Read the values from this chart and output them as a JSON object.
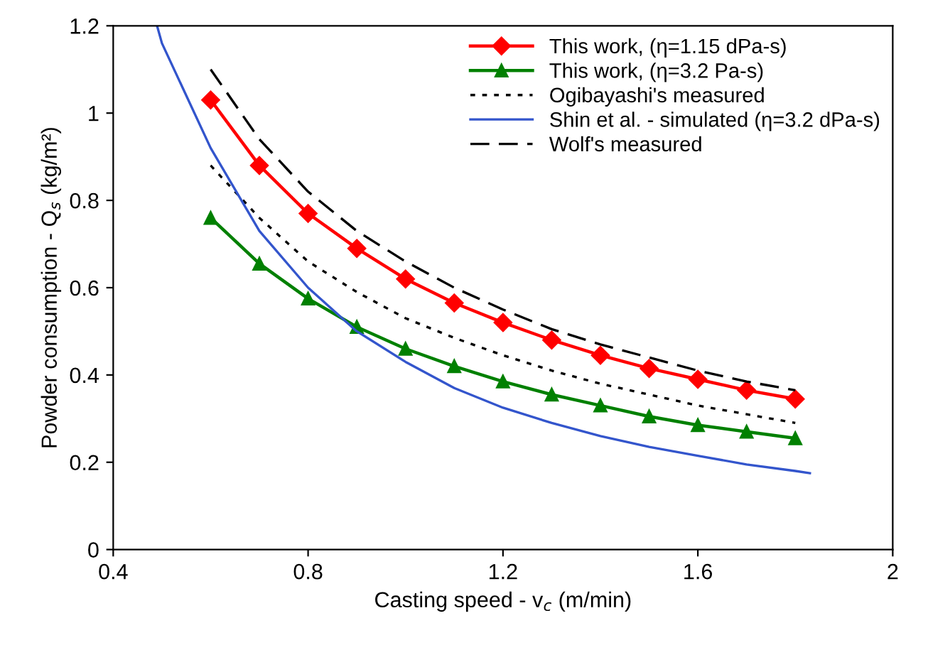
{
  "chart_data": {
    "type": "line",
    "xlabel": "Casting speed - v$_{c}$ (m/min)",
    "ylabel": "Powder consumption - Q$_{s}$ (kg/m²)",
    "xlim": [
      0.4,
      2
    ],
    "xticks": [
      0.4,
      0.8,
      1.2,
      1.6,
      2
    ],
    "ylim": [
      0,
      1.2
    ],
    "yticks": [
      0,
      0.2,
      0.4,
      0.6,
      0.8,
      1,
      1.2
    ],
    "grid": false,
    "legend": "top right",
    "series": [
      {
        "name": "This work, (η=1.15 dPa-s)",
        "color": "#ff0000",
        "marker": "diamond",
        "line_style": "solid",
        "x": [
          0.6,
          0.7,
          0.8,
          0.9,
          1.0,
          1.1,
          1.2,
          1.3,
          1.4,
          1.5,
          1.6,
          1.7,
          1.8
        ],
        "values": [
          1.03,
          0.88,
          0.77,
          0.69,
          0.62,
          0.565,
          0.52,
          0.48,
          0.445,
          0.415,
          0.39,
          0.365,
          0.345
        ]
      },
      {
        "name": "This work, (η=3.2 Pa-s)",
        "color": "#008000",
        "marker": "triangle",
        "line_style": "solid",
        "x": [
          0.6,
          0.7,
          0.8,
          0.9,
          1.0,
          1.1,
          1.2,
          1.3,
          1.4,
          1.5,
          1.6,
          1.7,
          1.8
        ],
        "values": [
          0.76,
          0.655,
          0.575,
          0.51,
          0.46,
          0.42,
          0.385,
          0.355,
          0.33,
          0.305,
          0.285,
          0.27,
          0.255
        ]
      },
      {
        "name": "Ogibayashi's measured",
        "color": "#000000",
        "marker": "none",
        "line_style": "dotted",
        "x": [
          0.6,
          0.7,
          0.8,
          0.9,
          1.0,
          1.1,
          1.2,
          1.3,
          1.4,
          1.5,
          1.6,
          1.7,
          1.8
        ],
        "values": [
          0.88,
          0.76,
          0.66,
          0.59,
          0.53,
          0.485,
          0.445,
          0.41,
          0.38,
          0.355,
          0.33,
          0.31,
          0.29
        ]
      },
      {
        "name": "Shin et al. - simulated (η=3.2 dPa-s)",
        "color": "#3355cc",
        "marker": "none",
        "line_style": "solid",
        "x": [
          0.49,
          0.5,
          0.6,
          0.7,
          0.8,
          0.9,
          1.0,
          1.1,
          1.2,
          1.3,
          1.4,
          1.5,
          1.6,
          1.7,
          1.8,
          1.83
        ],
        "values": [
          1.2,
          1.16,
          0.92,
          0.73,
          0.6,
          0.5,
          0.43,
          0.37,
          0.325,
          0.29,
          0.26,
          0.235,
          0.215,
          0.195,
          0.18,
          0.175
        ]
      },
      {
        "name": "Wolf's measured",
        "color": "#000000",
        "marker": "none",
        "line_style": "dashed",
        "x": [
          0.6,
          0.7,
          0.8,
          0.9,
          1.0,
          1.1,
          1.2,
          1.3,
          1.4,
          1.5,
          1.6,
          1.7,
          1.8
        ],
        "values": [
          1.1,
          0.94,
          0.82,
          0.73,
          0.66,
          0.6,
          0.55,
          0.505,
          0.47,
          0.44,
          0.41,
          0.385,
          0.365
        ]
      }
    ]
  }
}
